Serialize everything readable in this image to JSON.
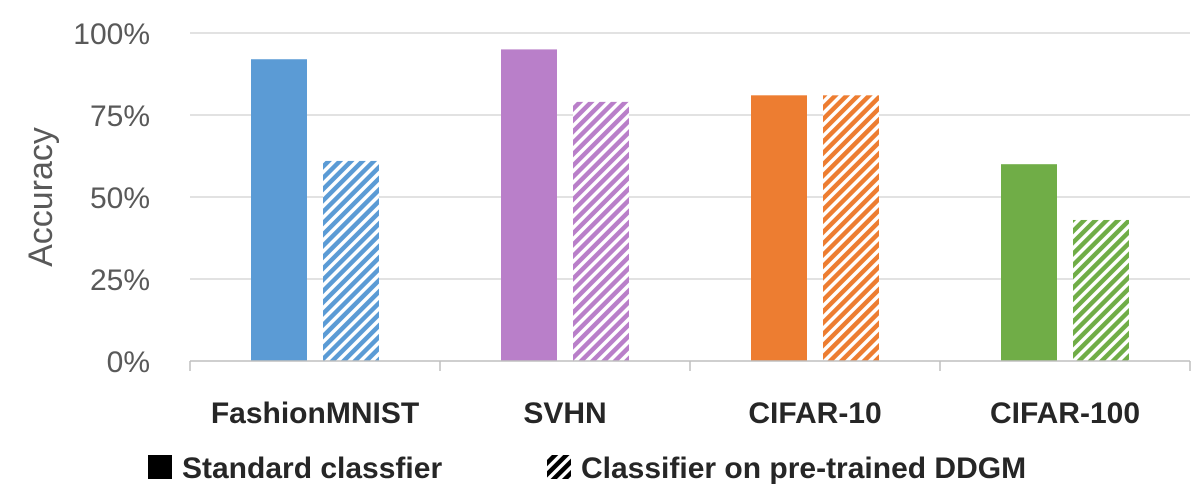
{
  "chart_data": {
    "type": "bar",
    "categories": [
      "FashionMNIST",
      "SVHN",
      "CIFAR-10",
      "CIFAR-100"
    ],
    "category_colors": [
      "#5b9bd5",
      "#b97fc9",
      "#ed7d31",
      "#70ad47"
    ],
    "series": [
      {
        "name": "Standard classfier",
        "values": [
          92,
          95,
          81,
          60
        ],
        "fill": "solid"
      },
      {
        "name": "Classifier on pre-trained DDGM",
        "values": [
          61,
          79,
          81,
          43
        ],
        "fill": "hatched"
      }
    ],
    "ylabel": "Accuracy",
    "ylim": [
      0,
      100
    ],
    "yticks": [
      "0%",
      "25%",
      "50%",
      "75%",
      "100%"
    ],
    "ytick_values": [
      0,
      25,
      50,
      75,
      100
    ],
    "grid": true,
    "legend_position": "bottom"
  }
}
